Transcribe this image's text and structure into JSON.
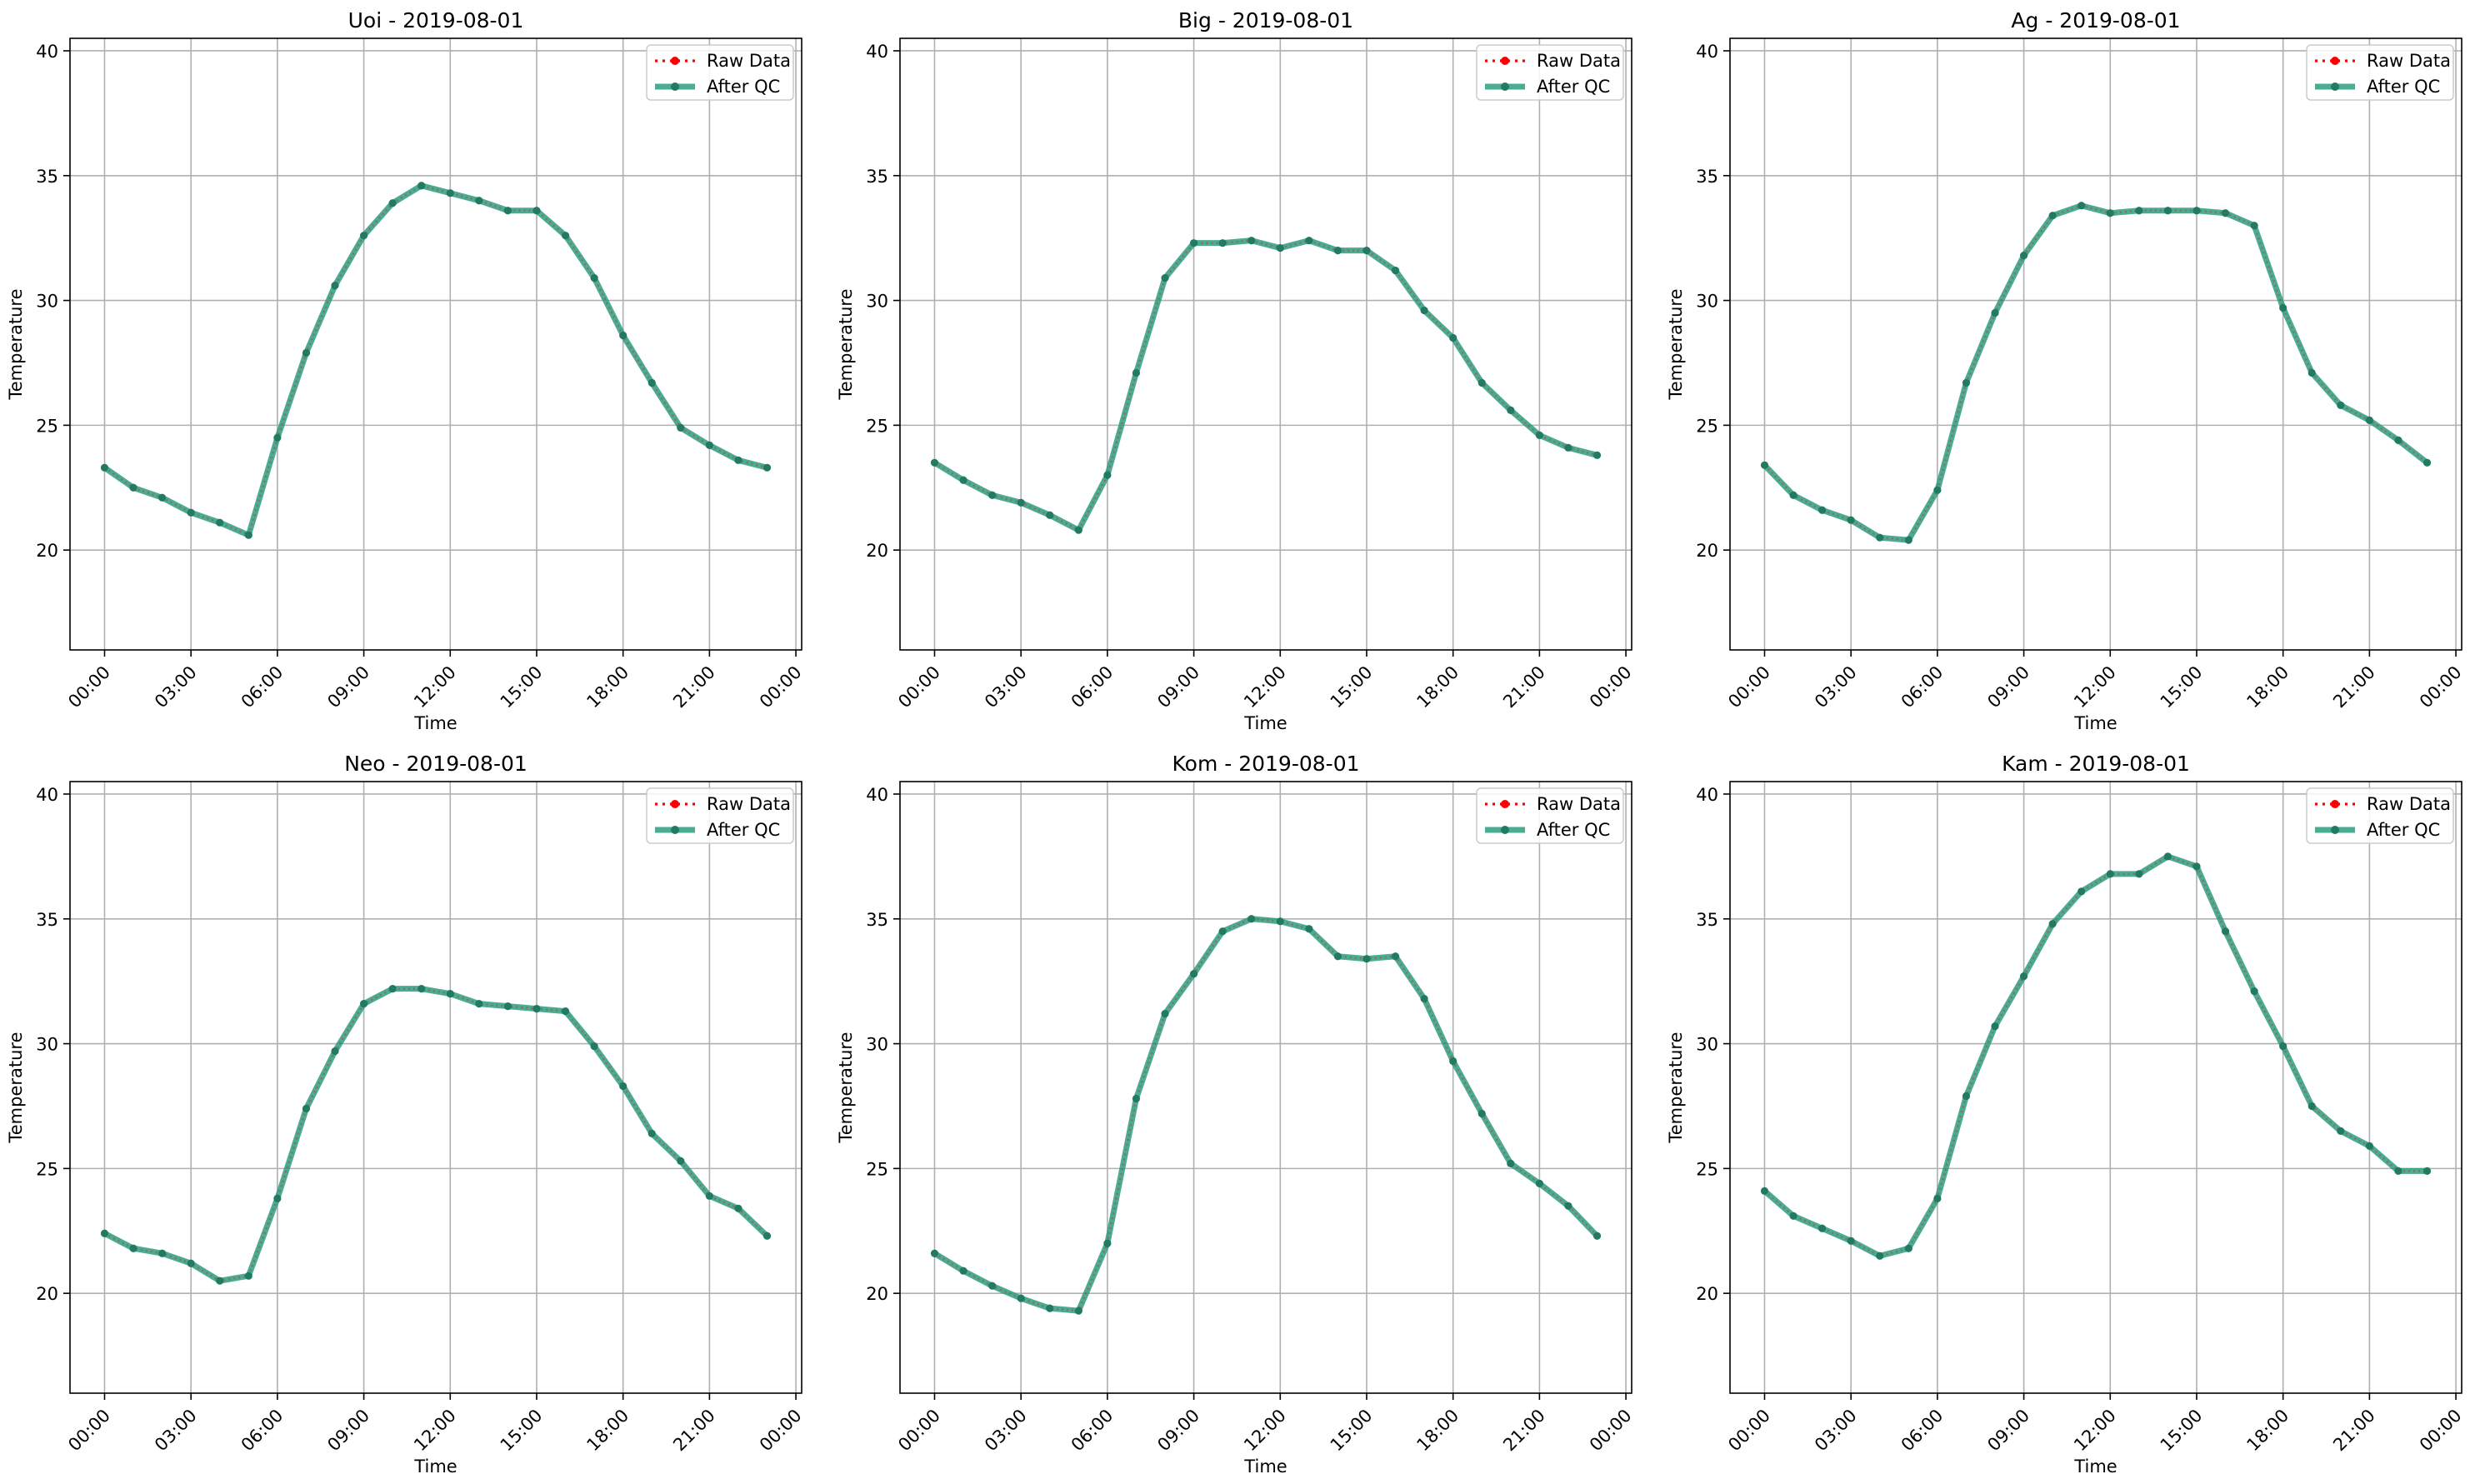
{
  "legend": {
    "raw_label": "Raw Data",
    "qc_label": "After QC"
  },
  "colors": {
    "raw": "#ff0000",
    "qc": "#2a9d7f",
    "qc_marker": "#237a63",
    "grid": "#b0b0b0",
    "axes": "#000000"
  },
  "axes": {
    "xlabel": "Time",
    "ylabel": "Temperature",
    "xticks": [
      "00:00",
      "03:00",
      "06:00",
      "09:00",
      "12:00",
      "15:00",
      "18:00",
      "21:00",
      "00:00"
    ],
    "yticks": [
      "20",
      "25",
      "30",
      "35",
      "40"
    ],
    "ylim": [
      16,
      40.5
    ],
    "xlim_hours": [
      -1.2,
      24.2
    ],
    "grid": true,
    "legend_position": "upper-right"
  },
  "chart_data": [
    {
      "type": "line",
      "title": "Uoi - 2019-08-01",
      "x": [
        0,
        1,
        2,
        3,
        4,
        5,
        6,
        7,
        8,
        9,
        10,
        11,
        12,
        13,
        14,
        15,
        16,
        17,
        18,
        19,
        20,
        21,
        22,
        23
      ],
      "series": [
        {
          "name": "Raw Data",
          "values": [
            23.3,
            22.5,
            22.1,
            21.5,
            21.1,
            20.6,
            24.5,
            27.9,
            30.6,
            32.6,
            33.9,
            34.6,
            34.3,
            34.0,
            33.6,
            33.6,
            32.6,
            30.9,
            28.6,
            26.7,
            24.9,
            24.2,
            23.6,
            23.3
          ]
        },
        {
          "name": "After QC",
          "values": [
            23.3,
            22.5,
            22.1,
            21.5,
            21.1,
            20.6,
            24.5,
            27.9,
            30.6,
            32.6,
            33.9,
            34.6,
            34.3,
            34.0,
            33.6,
            33.6,
            32.6,
            30.9,
            28.6,
            26.7,
            24.9,
            24.2,
            23.6,
            23.3
          ]
        }
      ]
    },
    {
      "type": "line",
      "title": "Big - 2019-08-01",
      "x": [
        0,
        1,
        2,
        3,
        4,
        5,
        6,
        7,
        8,
        9,
        10,
        11,
        12,
        13,
        14,
        15,
        16,
        17,
        18,
        19,
        20,
        21,
        22,
        23
      ],
      "series": [
        {
          "name": "Raw Data",
          "values": [
            23.5,
            22.8,
            22.2,
            21.9,
            21.4,
            20.8,
            23.0,
            27.1,
            30.9,
            32.3,
            32.3,
            32.4,
            32.1,
            32.4,
            32.0,
            32.0,
            31.2,
            29.6,
            28.5,
            26.7,
            25.6,
            24.6,
            24.1,
            23.8
          ]
        },
        {
          "name": "After QC",
          "values": [
            23.5,
            22.8,
            22.2,
            21.9,
            21.4,
            20.8,
            23.0,
            27.1,
            30.9,
            32.3,
            32.3,
            32.4,
            32.1,
            32.4,
            32.0,
            32.0,
            31.2,
            29.6,
            28.5,
            26.7,
            25.6,
            24.6,
            24.1,
            23.8
          ]
        }
      ]
    },
    {
      "type": "line",
      "title": "Ag - 2019-08-01",
      "x": [
        0,
        1,
        2,
        3,
        4,
        5,
        6,
        7,
        8,
        9,
        10,
        11,
        12,
        13,
        14,
        15,
        16,
        17,
        18,
        19,
        20,
        21,
        22,
        23
      ],
      "series": [
        {
          "name": "Raw Data",
          "values": [
            23.4,
            22.2,
            21.6,
            21.2,
            20.5,
            20.4,
            22.4,
            26.7,
            29.5,
            31.8,
            33.4,
            33.8,
            33.5,
            33.6,
            33.6,
            33.6,
            33.5,
            33.0,
            29.7,
            27.1,
            25.8,
            25.2,
            24.4,
            23.5
          ]
        },
        {
          "name": "After QC",
          "values": [
            23.4,
            22.2,
            21.6,
            21.2,
            20.5,
            20.4,
            22.4,
            26.7,
            29.5,
            31.8,
            33.4,
            33.8,
            33.5,
            33.6,
            33.6,
            33.6,
            33.5,
            33.0,
            29.7,
            27.1,
            25.8,
            25.2,
            24.4,
            23.5
          ]
        }
      ]
    },
    {
      "type": "line",
      "title": "Neo - 2019-08-01",
      "x": [
        0,
        1,
        2,
        3,
        4,
        5,
        6,
        7,
        8,
        9,
        10,
        11,
        12,
        13,
        14,
        15,
        16,
        17,
        18,
        19,
        20,
        21,
        22,
        23
      ],
      "series": [
        {
          "name": "Raw Data",
          "values": [
            22.4,
            21.8,
            21.6,
            21.2,
            20.5,
            20.7,
            23.8,
            27.4,
            29.7,
            31.6,
            32.2,
            32.2,
            32.0,
            31.6,
            31.5,
            31.4,
            31.3,
            29.9,
            28.3,
            26.4,
            25.3,
            23.9,
            23.4,
            22.3
          ]
        },
        {
          "name": "After QC",
          "values": [
            22.4,
            21.8,
            21.6,
            21.2,
            20.5,
            20.7,
            23.8,
            27.4,
            29.7,
            31.6,
            32.2,
            32.2,
            32.0,
            31.6,
            31.5,
            31.4,
            31.3,
            29.9,
            28.3,
            26.4,
            25.3,
            23.9,
            23.4,
            22.3
          ]
        }
      ]
    },
    {
      "type": "line",
      "title": "Kom - 2019-08-01",
      "x": [
        0,
        1,
        2,
        3,
        4,
        5,
        6,
        7,
        8,
        9,
        10,
        11,
        12,
        13,
        14,
        15,
        16,
        17,
        18,
        19,
        20,
        21,
        22,
        23
      ],
      "series": [
        {
          "name": "Raw Data",
          "values": [
            21.6,
            20.9,
            20.3,
            19.8,
            19.4,
            19.3,
            22.0,
            27.8,
            31.2,
            32.8,
            34.5,
            35.0,
            34.9,
            34.6,
            33.5,
            33.4,
            33.5,
            31.8,
            29.3,
            27.2,
            25.2,
            24.4,
            23.5,
            22.3
          ]
        },
        {
          "name": "After QC",
          "values": [
            21.6,
            20.9,
            20.3,
            19.8,
            19.4,
            19.3,
            22.0,
            27.8,
            31.2,
            32.8,
            34.5,
            35.0,
            34.9,
            34.6,
            33.5,
            33.4,
            33.5,
            31.8,
            29.3,
            27.2,
            25.2,
            24.4,
            23.5,
            22.3
          ]
        }
      ]
    },
    {
      "type": "line",
      "title": "Kam - 2019-08-01",
      "x": [
        0,
        1,
        2,
        3,
        4,
        5,
        6,
        7,
        8,
        9,
        10,
        11,
        12,
        13,
        14,
        15,
        16,
        17,
        18,
        19,
        20,
        21,
        22,
        23
      ],
      "series": [
        {
          "name": "Raw Data",
          "values": [
            24.1,
            23.1,
            22.6,
            22.1,
            21.5,
            21.8,
            23.8,
            27.9,
            30.7,
            32.7,
            34.8,
            36.1,
            36.8,
            36.8,
            37.5,
            37.1,
            34.5,
            32.1,
            29.9,
            27.5,
            26.5,
            25.9,
            24.9,
            24.9
          ]
        },
        {
          "name": "After QC",
          "values": [
            24.1,
            23.1,
            22.6,
            22.1,
            21.5,
            21.8,
            23.8,
            27.9,
            30.7,
            32.7,
            34.8,
            36.1,
            36.8,
            36.8,
            37.5,
            37.1,
            34.5,
            32.1,
            29.9,
            27.5,
            26.5,
            25.9,
            24.9,
            24.9
          ]
        }
      ]
    }
  ]
}
